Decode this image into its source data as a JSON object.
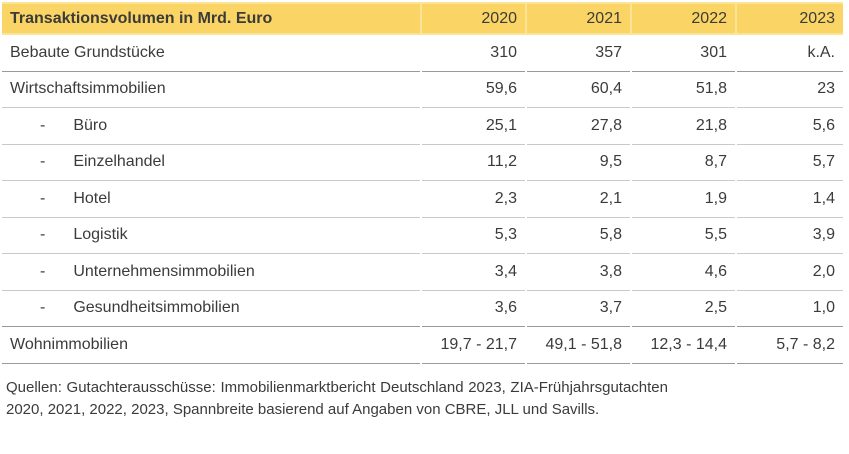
{
  "colors": {
    "header_bg": "#FAD464",
    "header_separator": "#FCE496",
    "text": "#3B3B3A",
    "divider_strong": "#9A9A9A",
    "divider_light": "#C9C9C9",
    "page_bg": "#FFFFFF"
  },
  "table": {
    "title": "Transaktionsvolumen in Mrd. Euro",
    "years": [
      "2020",
      "2021",
      "2022",
      "2023"
    ],
    "sub_row_marker": "-",
    "rows": [
      {
        "label": "Bebaute Grundstücke",
        "indent": false,
        "values": [
          "310",
          "357",
          "301",
          "k.A."
        ]
      },
      {
        "label": "Wirtschaftsimmobilien",
        "indent": false,
        "values": [
          "59,6",
          "60,4",
          "51,8",
          "23"
        ]
      },
      {
        "label": "Büro",
        "indent": true,
        "values": [
          "25,1",
          "27,8",
          "21,8",
          "5,6"
        ]
      },
      {
        "label": "Einzelhandel",
        "indent": true,
        "values": [
          "11,2",
          "9,5",
          "8,7",
          "5,7"
        ]
      },
      {
        "label": "Hotel",
        "indent": true,
        "values": [
          "2,3",
          "2,1",
          "1,9",
          "1,4"
        ]
      },
      {
        "label": "Logistik",
        "indent": true,
        "values": [
          "5,3",
          "5,8",
          "5,5",
          "3,9"
        ]
      },
      {
        "label": "Unternehmensimmobilien",
        "indent": true,
        "values": [
          "3,4",
          "3,8",
          "4,6",
          "2,0"
        ]
      },
      {
        "label": "Gesundheitsimmobilien",
        "indent": true,
        "values": [
          "3,6",
          "3,7",
          "2,5",
          "1,0"
        ]
      },
      {
        "label": "Wohnimmobilien",
        "indent": false,
        "values": [
          "19,7 - 21,7",
          "49,1 - 51,8",
          "12,3 - 14,4",
          "5,7 - 8,2"
        ]
      }
    ]
  },
  "footer": {
    "source_text": "Quellen: Gutachterausschüsse: Immobilienmarktbericht Deutschland 2023, ZIA-Frühjahrsgut­achten 2020, 2021, 2022, 2023, Spannbreite basierend auf Angaben von CBRE, JLL und Savills."
  }
}
